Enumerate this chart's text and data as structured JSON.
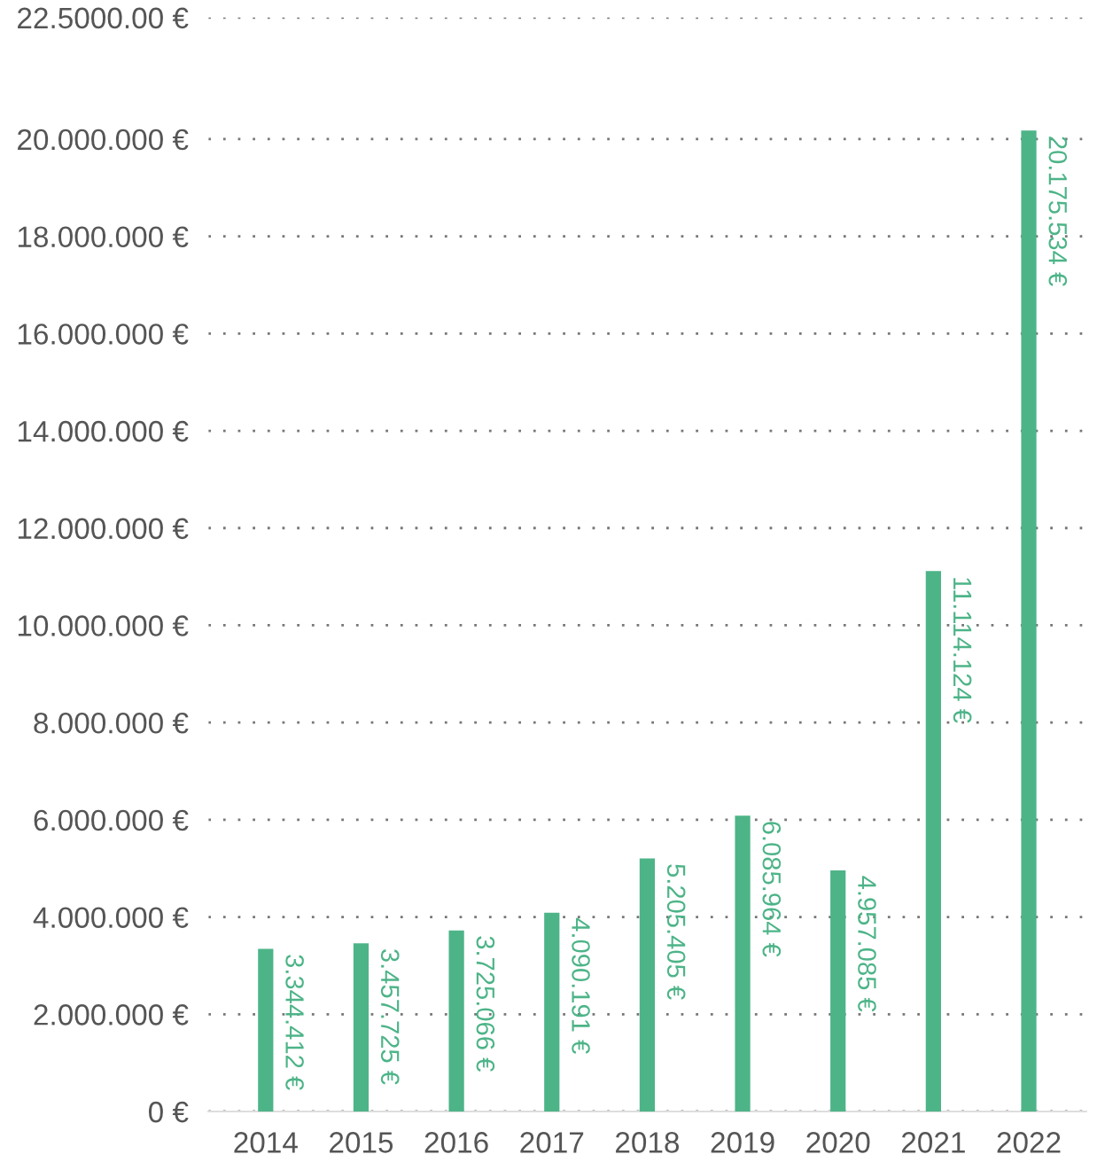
{
  "chart_data": {
    "type": "bar",
    "categories": [
      "2014",
      "2015",
      "2016",
      "2017",
      "2018",
      "2019",
      "2020",
      "2021",
      "2022"
    ],
    "values": [
      3344412,
      3457725,
      3725066,
      4090191,
      5205405,
      6085964,
      4957085,
      11114124,
      20175534
    ],
    "value_labels": [
      "3.344.412 €",
      "3.457.725 €",
      "3.725.066 €",
      "4.090.191 €",
      "5.205.405 €",
      "6.085.964 €",
      "4.957.085 €",
      "11.114.124 €",
      "20.175.534 €"
    ],
    "color": "#4db488",
    "ylim": [
      0,
      22500000
    ],
    "yticks": [
      {
        "value": 0,
        "label": "0 €"
      },
      {
        "value": 2000000,
        "label": "2.000.000 €"
      },
      {
        "value": 4000000,
        "label": "4.000.000 €"
      },
      {
        "value": 6000000,
        "label": "6.000.000 €"
      },
      {
        "value": 8000000,
        "label": "8.000.000 €"
      },
      {
        "value": 10000000,
        "label": "10.000.000 €"
      },
      {
        "value": 12000000,
        "label": "12.000.000 €"
      },
      {
        "value": 14000000,
        "label": "14.000.000 €"
      },
      {
        "value": 16000000,
        "label": "16.000.000 €"
      },
      {
        "value": 18000000,
        "label": "18.000.000 €"
      },
      {
        "value": 20000000,
        "label": "20.000.000 €"
      },
      {
        "value": 22500000,
        "label": "22.5000.00 €"
      }
    ],
    "grid": "y"
  }
}
